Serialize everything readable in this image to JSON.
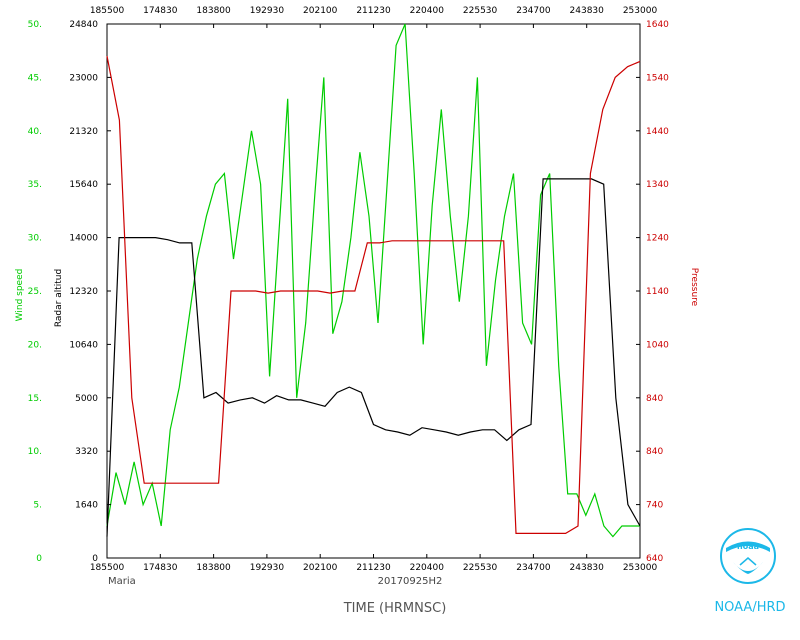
{
  "chart_data": {
    "type": "line",
    "storm_name": "Maria",
    "date_label": "20170925H2",
    "xlabel": "TIME  (HRMNSC)",
    "x_ticks": [
      "185500",
      "174830",
      "183800",
      "192930",
      "202100",
      "211230",
      "220400",
      "225530",
      "234700",
      "243830",
      "253000"
    ],
    "x_range": [
      185500,
      253000
    ],
    "y_axes": {
      "wind": {
        "label": "Wind speed",
        "color": "#00cc00",
        "ticks": [
          "0",
          "5.",
          "10.",
          "15.",
          "20.",
          "25.",
          "30.",
          "35.",
          "40.",
          "45.",
          "50."
        ],
        "range": [
          0,
          50
        ]
      },
      "altitude": {
        "label": "Radar altitud",
        "color": "#000000",
        "ticks": [
          "0",
          "1640",
          "3320",
          "5000",
          "10640",
          "12320",
          "14000",
          "15640",
          "21320",
          "23000",
          "24840"
        ]
      },
      "pressure": {
        "label": "Pressure",
        "color": "#cc0000",
        "ticks": [
          "640",
          "740",
          "840",
          "840",
          "1040",
          "1140",
          "1240",
          "1340",
          "1440",
          "1540",
          "1640"
        ]
      }
    },
    "series": [
      {
        "name": "Wind speed",
        "axis": "wind",
        "color": "#00cc00",
        "values": [
          3,
          8,
          5,
          9,
          5,
          7,
          3,
          12,
          16,
          22,
          28,
          32,
          35,
          36,
          28,
          34,
          40,
          35,
          17,
          30,
          43,
          15,
          22,
          34,
          45,
          21,
          24,
          30,
          38,
          32,
          22,
          35,
          48,
          50,
          36,
          20,
          33,
          42,
          32,
          24,
          32,
          45,
          18,
          26,
          32,
          36,
          22,
          20,
          34,
          36,
          18,
          6,
          6,
          4,
          6,
          3,
          2,
          3,
          3,
          3
        ]
      },
      {
        "name": "Radar altitude",
        "axis": "wind",
        "color": "#000000",
        "values": [
          2,
          30,
          30,
          30,
          30,
          29.8,
          29.5,
          29.5,
          15,
          15.5,
          14.5,
          14.8,
          15,
          14.5,
          15.2,
          14.8,
          14.8,
          14.5,
          14.2,
          15.5,
          16,
          15.5,
          12.5,
          12,
          11.8,
          11.5,
          12.2,
          12,
          11.8,
          11.5,
          11.8,
          12,
          12,
          11,
          12,
          12.5,
          35.5,
          35.5,
          35.5,
          35.5,
          35.5,
          35,
          15,
          5,
          3
        ]
      },
      {
        "name": "Pressure",
        "axis": "wind",
        "color": "#cc0000",
        "values": [
          47,
          41,
          15,
          7,
          7,
          7,
          7,
          7,
          7,
          7,
          25,
          25,
          25,
          24.8,
          25,
          25,
          25,
          25,
          24.8,
          25,
          25,
          29.5,
          29.5,
          29.7,
          29.7,
          29.7,
          29.7,
          29.7,
          29.7,
          29.7,
          29.7,
          29.7,
          29.7,
          2.3,
          2.3,
          2.3,
          2.3,
          2.3,
          3,
          36,
          42,
          45,
          46,
          46.5
        ]
      }
    ]
  },
  "branding": {
    "text": "NOAA/HRD",
    "logo_text": "noaa",
    "color": "#1cb8e8"
  }
}
